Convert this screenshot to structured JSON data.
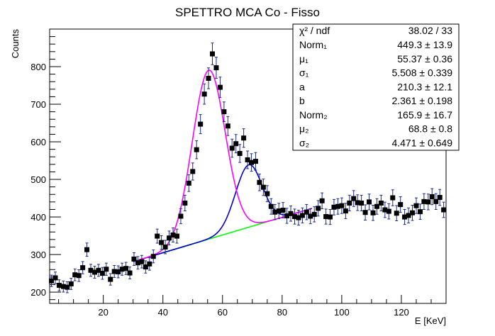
{
  "chart_data": {
    "type": "scatter",
    "title": "SPETTRO MCA Co - Fisso",
    "xlabel": "E [KeV]",
    "ylabel": "Counts",
    "xlim": [
      2,
      135
    ],
    "ylim": [
      170,
      900
    ],
    "x_ticks": [
      20,
      40,
      60,
      80,
      100,
      120
    ],
    "y_ticks": [
      200,
      300,
      400,
      500,
      600,
      700,
      800
    ],
    "grid": false,
    "colors": {
      "data": "#000000",
      "errorbar": "#1a2a8a",
      "total_fit": "#e00000",
      "peak1": "#ff00ff",
      "peak2": "#0000cc",
      "background": "#00ff00"
    },
    "fit_range": [
      30,
      90
    ],
    "fit_functions": {
      "total": "Norm1*gaus(mu1,sigma1) + a + b*E + Norm2*gaus(mu2,sigma2)",
      "peak1": "a + b*E + Norm1*gaus(mu1,sigma1)",
      "peak2": "a + b*E + Norm2*gaus(mu2,sigma2)",
      "background": "a + b*E"
    },
    "series": [
      {
        "x": [
          2.6,
          3.9,
          5.2,
          6.6,
          7.9,
          9.2,
          10.5,
          11.8,
          13.1,
          14.5,
          15.8,
          17.1,
          18.4,
          19.7,
          21.0,
          22.4,
          23.7,
          25.0,
          26.3,
          27.6,
          28.9,
          30.3,
          31.6,
          32.9,
          34.2,
          35.5,
          36.8,
          38.1,
          39.5,
          40.8,
          42.1,
          43.4,
          44.7,
          46.0,
          47.4,
          48.7,
          50.0,
          51.3,
          52.6,
          53.9,
          55.3,
          56.6,
          57.9,
          59.2,
          60.5,
          61.8,
          63.2,
          64.5,
          65.8,
          67.1,
          68.4,
          69.7,
          71.1,
          72.4,
          73.7,
          75.0,
          76.3,
          77.6,
          78.9,
          80.3,
          81.6,
          82.9,
          84.2,
          85.5,
          86.8,
          88.2,
          89.5,
          90.8,
          92.1,
          93.4,
          94.7,
          96.1,
          97.4,
          98.7,
          100.0,
          101.3,
          102.6,
          104.0,
          105.3,
          106.6,
          107.9,
          109.2,
          110.5,
          111.8,
          113.2,
          114.5,
          115.8,
          117.1,
          118.4,
          119.7,
          121.1,
          122.4,
          123.7,
          125.0,
          126.3,
          127.6,
          129.0,
          130.3,
          131.6,
          132.9,
          134.2
        ],
        "y": [
          230,
          238,
          218,
          215,
          213,
          222,
          246,
          244,
          265,
          313,
          258,
          253,
          258,
          250,
          261,
          234,
          255,
          254,
          261,
          263,
          251,
          288,
          278,
          281,
          267,
          275,
          295,
          349,
          332,
          320,
          344,
          352,
          349,
          402,
          437,
          490,
          521,
          579,
          647,
          727,
          769,
          834,
          797,
          745,
          680,
          642,
          583,
          595,
          569,
          610,
          552,
          545,
          548,
          492,
          479,
          462,
          428,
          413,
          416,
          418,
          403,
          409,
          401,
          398,
          404,
          413,
          402,
          407,
          423,
          443,
          401,
          400,
          426,
          428,
          430,
          416,
          437,
          449,
          438,
          437,
          412,
          440,
          411,
          428,
          437,
          419,
          415,
          451,
          410,
          433,
          400,
          404,
          411,
          430,
          414,
          441,
          440,
          454,
          441,
          452,
          419
        ]
      }
    ],
    "stats": [
      {
        "label": "χ² / ndf",
        "value": "38.02 / 33"
      },
      {
        "label": "Norm₁",
        "value": "449.3 ± 13.9"
      },
      {
        "label": "μ₁",
        "value": "55.37 ± 0.36"
      },
      {
        "label": "σ₁",
        "value": "5.508 ± 0.339"
      },
      {
        "label": "a",
        "value": "210.3 ± 12.1"
      },
      {
        "label": "b",
        "value": "2.361 ± 0.198"
      },
      {
        "label": "Norm₂",
        "value": "165.9 ± 16.7"
      },
      {
        "label": "μ₂",
        "value": "68.8 ± 0.8"
      },
      {
        "label": "σ₂",
        "value": "4.471 ± 0.649"
      }
    ],
    "params": {
      "Norm1": 449.3,
      "mu1": 55.37,
      "sigma1": 5.508,
      "a": 210.3,
      "b": 2.361,
      "Norm2": 165.9,
      "mu2": 68.8,
      "sigma2": 4.471
    }
  }
}
